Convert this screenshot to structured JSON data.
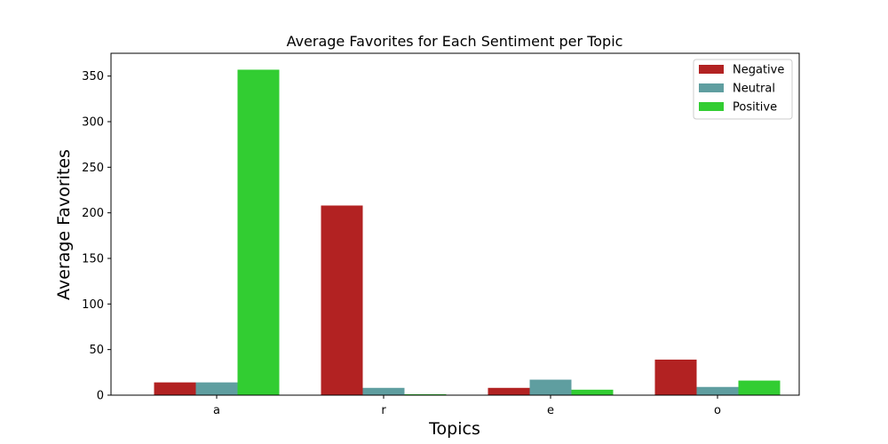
{
  "chart_data": {
    "type": "bar",
    "title": "Average Favorites for Each Sentiment per Topic",
    "xlabel": "Topics",
    "ylabel": "Average Favorites",
    "categories": [
      "a",
      "r",
      "e",
      "o"
    ],
    "series": [
      {
        "name": "Negative",
        "color": "#b22222",
        "values": [
          14,
          208,
          8,
          39
        ]
      },
      {
        "name": "Neutral",
        "color": "#5f9ea0",
        "values": [
          14,
          8,
          17,
          9
        ]
      },
      {
        "name": "Positive",
        "color": "#32cd32",
        "values": [
          357,
          1,
          6,
          16
        ]
      }
    ],
    "ylim": [
      0,
      375
    ],
    "yticks": [
      0,
      50,
      100,
      150,
      200,
      250,
      300,
      350
    ],
    "grid": false,
    "legend_position": "top-right"
  }
}
